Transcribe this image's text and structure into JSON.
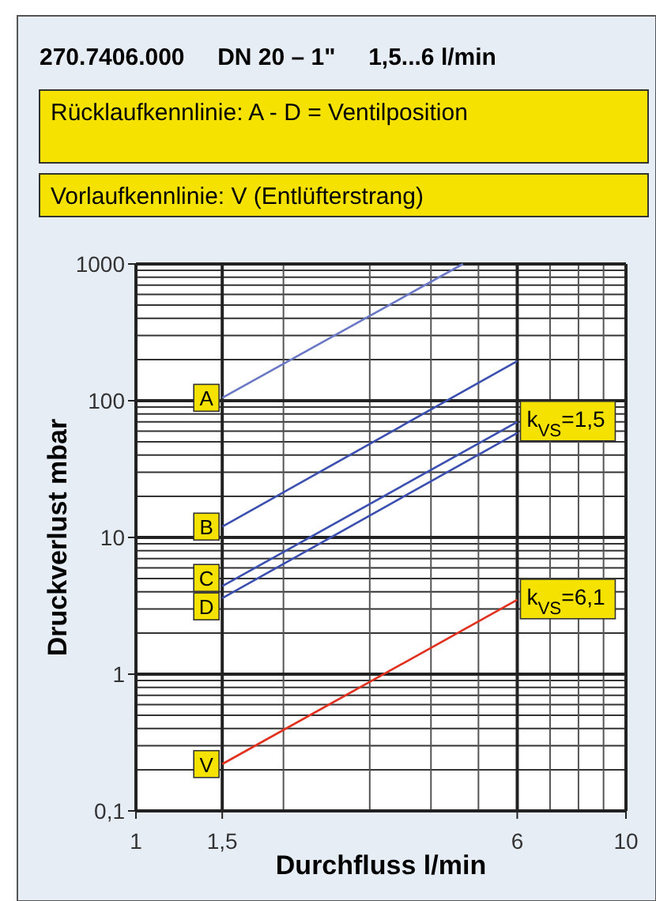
{
  "chart_data": {
    "type": "line",
    "title": "270.7406.000     DN 20 – 1\"     1,5...6 l/min",
    "annotations": [
      "Rücklaufkennlinie: A - D = Ventilposition",
      "Vorlaufkennlinie: V (Entlüfterstrang)",
      {
        "text": "k$_{VS}$=1,5",
        "x": 6,
        "y": 70
      },
      {
        "text": "k$_{VS}$=6,1",
        "x": 6,
        "y": 3.5
      }
    ],
    "xlabel": "Durchfluss l/min",
    "ylabel": "Druckverlust mbar",
    "series": [
      {
        "name": "A",
        "color": "#6b78c6",
        "x": [
          1.5,
          4.65
        ],
        "values": [
          105,
          1000
        ]
      },
      {
        "name": "B",
        "color": "#3b4fb0",
        "x": [
          1.5,
          6
        ],
        "values": [
          12,
          195
        ]
      },
      {
        "name": "C",
        "color": "#3b4fb0",
        "x": [
          1.5,
          6
        ],
        "values": [
          4.4,
          70
        ]
      },
      {
        "name": "D",
        "color": "#3b4fb0",
        "x": [
          1.5,
          6
        ],
        "values": [
          3.6,
          58
        ]
      },
      {
        "name": "V",
        "color": "#e0301e",
        "x": [
          1.5,
          6
        ],
        "values": [
          0.22,
          3.5
        ]
      }
    ],
    "log": "xy",
    "grid": true,
    "xlim": [
      1,
      10
    ],
    "xticks": [
      1,
      {
        "value": 1.5,
        "label": "1,5"
      },
      6,
      10
    ],
    "ylim": [
      0.1,
      1000
    ],
    "yticks": [
      {
        "value": 0.1,
        "label": "0,1"
      },
      1,
      10,
      100,
      1000
    ]
  }
}
